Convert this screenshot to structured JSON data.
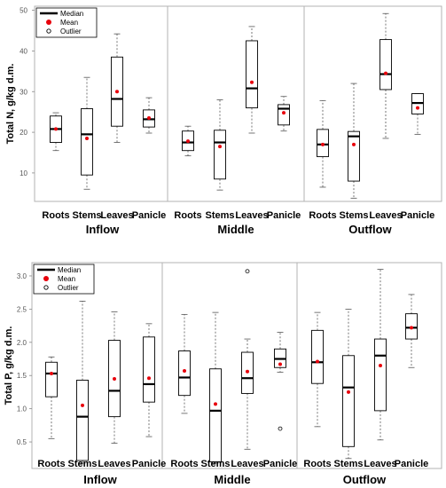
{
  "chart_data": [
    {
      "type": "box",
      "ylabel": "Total N, g/kg d.m.",
      "ylim": [
        3,
        51
      ],
      "yticks": [
        10,
        20,
        30,
        40,
        50
      ],
      "groups": [
        "Inflow",
        "Middle",
        "Outflow"
      ],
      "categories": [
        "Roots",
        "Stems",
        "Leaves",
        "Panicle"
      ],
      "legend": {
        "median": "Median",
        "mean": "Mean",
        "outlier": "Outlier",
        "position": "top-left"
      },
      "series": [
        {
          "group": "Inflow",
          "category": "Roots",
          "min": 15.5,
          "q1": 17.5,
          "median": 20.8,
          "q3": 24,
          "max": 24.8,
          "mean": 20.8,
          "outliers": []
        },
        {
          "group": "Inflow",
          "category": "Stems",
          "min": 6,
          "q1": 9.5,
          "median": 19.5,
          "q3": 25.8,
          "max": 33.5,
          "mean": 18.5,
          "outliers": []
        },
        {
          "group": "Inflow",
          "category": "Leaves",
          "min": 17.5,
          "q1": 21.5,
          "median": 28.2,
          "q3": 38.5,
          "max": 44.2,
          "mean": 30,
          "outliers": []
        },
        {
          "group": "Inflow",
          "category": "Panicle",
          "min": 19.8,
          "q1": 21.3,
          "median": 23.2,
          "q3": 25.5,
          "max": 28.5,
          "mean": 23.5,
          "outliers": []
        },
        {
          "group": "Middle",
          "category": "Roots",
          "min": 14.2,
          "q1": 15.5,
          "median": 17.5,
          "q3": 20.3,
          "max": 21.5,
          "mean": 17.8,
          "outliers": []
        },
        {
          "group": "Middle",
          "category": "Stems",
          "min": 5.8,
          "q1": 8.5,
          "median": 17.5,
          "q3": 20.5,
          "max": 28,
          "mean": 16.5,
          "outliers": []
        },
        {
          "group": "Middle",
          "category": "Leaves",
          "min": 19.8,
          "q1": 26,
          "median": 30.8,
          "q3": 42.5,
          "max": 46,
          "mean": 32.3,
          "outliers": []
        },
        {
          "group": "Middle",
          "category": "Panicle",
          "min": 20.3,
          "q1": 21.8,
          "median": 25.8,
          "q3": 26.8,
          "max": 28.8,
          "mean": 24.8,
          "outliers": []
        },
        {
          "group": "Outflow",
          "category": "Roots",
          "min": 6.5,
          "q1": 14,
          "median": 17,
          "q3": 20.7,
          "max": 27.8,
          "mean": 17,
          "outliers": []
        },
        {
          "group": "Outflow",
          "category": "Stems",
          "min": 3.8,
          "q1": 8,
          "median": 19,
          "q3": 20.2,
          "max": 32,
          "mean": 17,
          "outliers": []
        },
        {
          "group": "Outflow",
          "category": "Leaves",
          "min": 18.5,
          "q1": 30.5,
          "median": 34.3,
          "q3": 42.8,
          "max": 49.2,
          "mean": 34.5,
          "outliers": []
        },
        {
          "group": "Outflow",
          "category": "Panicle",
          "min": 19.5,
          "q1": 24.5,
          "median": 27.2,
          "q3": 29.5,
          "max": 29.5,
          "mean": 26,
          "outliers": []
        }
      ]
    },
    {
      "type": "box",
      "ylabel": "Total P, g/kg d.m.",
      "ylim": [
        0.1,
        3.2
      ],
      "yticks": [
        0.5,
        1.0,
        1.5,
        2.0,
        2.5,
        3.0
      ],
      "groups": [
        "Inflow",
        "Middle",
        "Outflow"
      ],
      "categories": [
        "Roots",
        "Stems",
        "Leaves",
        "Panicle"
      ],
      "legend": {
        "median": "Median",
        "mean": "Mean",
        "outlier": "Outlier",
        "position": "top-left"
      },
      "series": [
        {
          "group": "Inflow",
          "category": "Roots",
          "min": 0.55,
          "q1": 1.18,
          "median": 1.53,
          "q3": 1.7,
          "max": 1.78,
          "mean": 1.53,
          "outliers": []
        },
        {
          "group": "Inflow",
          "category": "Stems",
          "min": 0.18,
          "q1": 0.22,
          "median": 0.88,
          "q3": 1.43,
          "max": 2.62,
          "mean": 1.05,
          "outliers": []
        },
        {
          "group": "Inflow",
          "category": "Leaves",
          "min": 0.48,
          "q1": 0.88,
          "median": 1.27,
          "q3": 2.03,
          "max": 2.46,
          "mean": 1.45,
          "outliers": []
        },
        {
          "group": "Inflow",
          "category": "Panicle",
          "min": 0.58,
          "q1": 1.1,
          "median": 1.37,
          "q3": 2.08,
          "max": 2.28,
          "mean": 1.46,
          "outliers": []
        },
        {
          "group": "Middle",
          "category": "Roots",
          "min": 0.93,
          "q1": 1.2,
          "median": 1.47,
          "q3": 1.87,
          "max": 2.42,
          "mean": 1.57,
          "outliers": []
        },
        {
          "group": "Middle",
          "category": "Stems",
          "min": 0.18,
          "q1": 0.2,
          "median": 0.97,
          "q3": 1.6,
          "max": 2.45,
          "mean": 1.07,
          "outliers": []
        },
        {
          "group": "Middle",
          "category": "Leaves",
          "min": 0.39,
          "q1": 1.23,
          "median": 1.46,
          "q3": 1.85,
          "max": 2.05,
          "mean": 1.56,
          "outliers": [
            3.07
          ]
        },
        {
          "group": "Middle",
          "category": "Panicle",
          "min": 1.55,
          "q1": 1.62,
          "median": 1.75,
          "q3": 1.9,
          "max": 2.15,
          "mean": 1.67,
          "outliers": [
            0.7
          ]
        },
        {
          "group": "Outflow",
          "category": "Roots",
          "min": 0.73,
          "q1": 1.38,
          "median": 1.7,
          "q3": 2.18,
          "max": 2.45,
          "mean": 1.71,
          "outliers": []
        },
        {
          "group": "Outflow",
          "category": "Stems",
          "min": 0.25,
          "q1": 0.43,
          "median": 1.32,
          "q3": 1.8,
          "max": 2.5,
          "mean": 1.25,
          "outliers": []
        },
        {
          "group": "Outflow",
          "category": "Leaves",
          "min": 0.53,
          "q1": 0.97,
          "median": 1.8,
          "q3": 2.05,
          "max": 3.1,
          "mean": 1.65,
          "outliers": []
        },
        {
          "group": "Outflow",
          "category": "Panicle",
          "min": 1.62,
          "q1": 2.05,
          "median": 2.22,
          "q3": 2.43,
          "max": 2.72,
          "mean": 2.22,
          "outliers": []
        }
      ]
    }
  ]
}
